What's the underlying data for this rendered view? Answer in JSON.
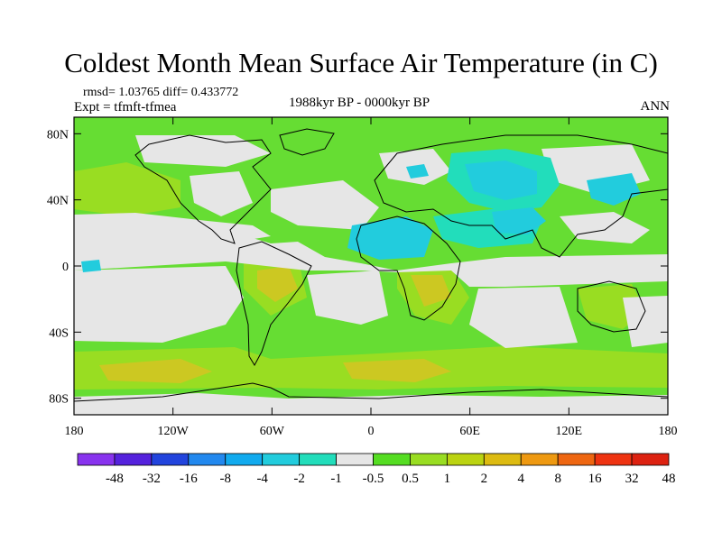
{
  "header": {
    "title": "Coldest Month Mean Surface Air Temperature (in C)",
    "stats": "rmsd= 1.03765 diff= 0.433772",
    "experiment": "Expt = tfmft-tfmea",
    "period": "1988kyr BP - 0000kyr BP",
    "season": "ANN"
  },
  "map": {
    "projection": "cylindrical-equidistant",
    "lon_range": [
      -180,
      180
    ],
    "lat_range": [
      -90,
      90
    ],
    "lat_ticks": [
      {
        "value": 80,
        "label": "80N"
      },
      {
        "value": 40,
        "label": "40N"
      },
      {
        "value": 0,
        "label": "0"
      },
      {
        "value": -40,
        "label": "40S"
      },
      {
        "value": -80,
        "label": "80S"
      }
    ],
    "lon_ticks": [
      {
        "value": -180,
        "label": "180"
      },
      {
        "value": -120,
        "label": "120W"
      },
      {
        "value": -60,
        "label": "60W"
      },
      {
        "value": 0,
        "label": "0"
      },
      {
        "value": 60,
        "label": "60E"
      },
      {
        "value": 120,
        "label": "120E"
      },
      {
        "value": 180,
        "label": "180"
      }
    ],
    "colors": {
      "near_zero": "#e6e6e6",
      "pos_0_5": "#66dd33",
      "pos_1": "#99dd22",
      "pos_2": "#ccc822",
      "neg_0_5": "#22dd99",
      "neg_1": "#22ccdd"
    }
  },
  "colorbar": {
    "colors": [
      "#8833ee",
      "#5522dd",
      "#2244dd",
      "#2288ee",
      "#11aaee",
      "#22ccdd",
      "#22ddbb",
      "#e6e6e6",
      "#55dd22",
      "#99dd22",
      "#bbd311",
      "#ddbb11",
      "#ee9911",
      "#ee6611",
      "#ee3311",
      "#dd2211"
    ],
    "labels": [
      "-48",
      "-32",
      "-16",
      "-8",
      "-4",
      "-2",
      "-1",
      "-0.5",
      "0.5",
      "1",
      "2",
      "4",
      "8",
      "16",
      "32",
      "48"
    ]
  }
}
